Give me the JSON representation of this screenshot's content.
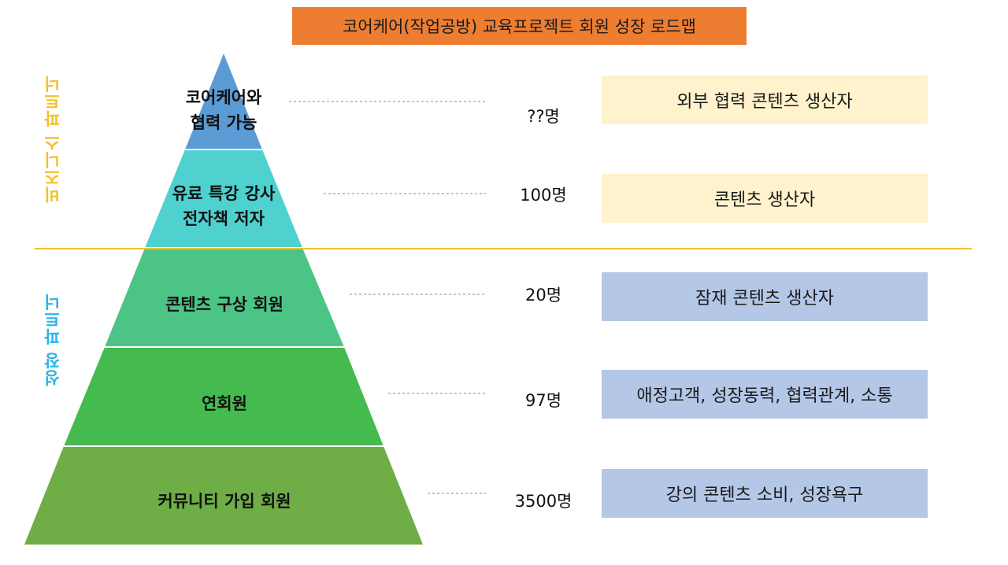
{
  "title": "코어케어(작업공방) 교육프로젝트 회원 성장 로드맵",
  "side_labels": {
    "business": "비즈니스 파트너",
    "growth": "성장 파트너"
  },
  "colors": {
    "title_bg": "#ED7D31",
    "divider": "#F2C12E",
    "business_label": "#F2C12E",
    "growth_label": "#2EB4E6",
    "tier_1": "#5B9BD5",
    "tier_2": "#4FD1CF",
    "tier_3": "#4CC485",
    "tier_4": "#45BB4F",
    "tier_5": "#6FAD47",
    "box_yellow": "#FFF2CC",
    "box_blue": "#B4C7E7"
  },
  "tiers": [
    {
      "line1": "코어케어와",
      "line2": "협력 가능",
      "count": "??명",
      "role": "외부 협력 콘텐츠 생산자"
    },
    {
      "line1": "유료 특강 강사",
      "line2": "전자책 저자",
      "count": "100명",
      "role": "콘텐츠 생산자"
    },
    {
      "line1": "콘텐츠 구상 회원",
      "line2": "",
      "count": "20명",
      "role": "잠재 콘텐츠 생산자"
    },
    {
      "line1": "연회원",
      "line2": "",
      "count": "97명",
      "role": "애정고객, 성장동력, 협력관계, 소통"
    },
    {
      "line1": "커뮤니티 가입 회원",
      "line2": "",
      "count": "3500명",
      "role": "강의 콘텐츠 소비, 성장욕구"
    }
  ]
}
